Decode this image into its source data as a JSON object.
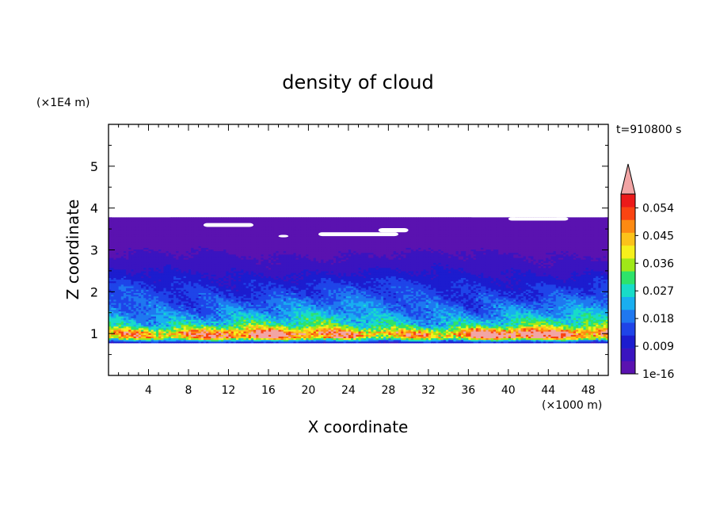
{
  "chart_data": {
    "type": "heatmap",
    "title": "density of cloud",
    "xlabel": "X coordinate",
    "ylabel": "Z coordinate",
    "x_unit": "(×1000 m)",
    "y_unit": "(×1E4 m)",
    "time_label": "t=910800 s",
    "xlim": [
      0,
      50
    ],
    "ylim": [
      0,
      6
    ],
    "x_ticks": [
      4,
      8,
      12,
      16,
      20,
      24,
      28,
      32,
      36,
      40,
      44,
      48
    ],
    "y_ticks": [
      1,
      2,
      3,
      4,
      5
    ],
    "colorbar": {
      "tick_labels": [
        "1e-16",
        "0.009",
        "0.018",
        "0.027",
        "0.036",
        "0.045",
        "0.054"
      ],
      "tick_values": [
        0,
        0.009,
        0.018,
        0.027,
        0.036,
        0.045,
        0.054
      ],
      "levels": [
        0,
        0.0045,
        0.009,
        0.0135,
        0.018,
        0.0225,
        0.027,
        0.0315,
        0.036,
        0.0405,
        0.045,
        0.0495,
        0.054,
        0.0585
      ],
      "colors": [
        "#5a12b0",
        "#3a14c0",
        "#1c1ccf",
        "#1f44e8",
        "#1f78f0",
        "#19aef0",
        "#18dcc8",
        "#2ee36a",
        "#a0e818",
        "#f6f01c",
        "#fcc21a",
        "#fd8a12",
        "#fa4412",
        "#ec1a1a"
      ],
      "overflow_color": "#f2a5a5"
    },
    "profile": {
      "z": [
        0.78,
        0.9,
        1.0,
        1.1,
        1.2,
        1.35,
        1.5,
        1.7,
        1.9,
        2.1,
        2.3,
        2.5,
        2.8,
        3.1,
        3.4,
        3.78
      ],
      "density": [
        0.012,
        0.05,
        0.056,
        0.04,
        0.03,
        0.026,
        0.022,
        0.019,
        0.016,
        0.014,
        0.011,
        0.008,
        0.005,
        0.003,
        0.0015,
        0.0005
      ]
    },
    "cloud_base_z": 0.78,
    "cloud_top_z": 3.78
  }
}
